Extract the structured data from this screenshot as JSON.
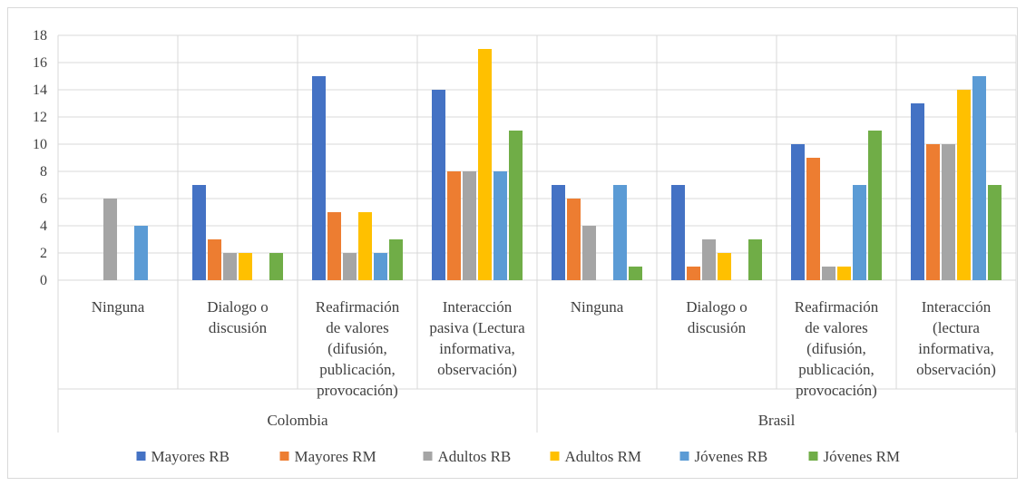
{
  "chart_data": {
    "type": "bar",
    "title": "",
    "xlabel": "",
    "ylabel": "",
    "ylim": [
      0,
      18
    ],
    "y_ticks": [
      0,
      2,
      4,
      6,
      8,
      10,
      12,
      14,
      16,
      18
    ],
    "grid": "horizontal major gridlines",
    "legend_position": "bottom",
    "groups": [
      {
        "name": "Colombia",
        "categories": [
          0,
          1,
          2,
          3
        ]
      },
      {
        "name": "Brasil",
        "categories": [
          4,
          5,
          6,
          7
        ]
      }
    ],
    "categories": [
      {
        "group": "Colombia",
        "lines": [
          "Ninguna"
        ]
      },
      {
        "group": "Colombia",
        "lines": [
          "Dialogo o",
          "discusión"
        ]
      },
      {
        "group": "Colombia",
        "lines": [
          "Reafirmación",
          "de valores",
          "(difusión,",
          "publicación,",
          "provocación)"
        ]
      },
      {
        "group": "Colombia",
        "lines": [
          "Interacción",
          "pasiva (Lectura",
          "informativa,",
          "observación)"
        ]
      },
      {
        "group": "Brasil",
        "lines": [
          "Ninguna"
        ]
      },
      {
        "group": "Brasil",
        "lines": [
          "Dialogo o",
          "discusión"
        ]
      },
      {
        "group": "Brasil",
        "lines": [
          "Reafirmación",
          "de valores",
          "(difusión,",
          "publicación,",
          "provocación)"
        ]
      },
      {
        "group": "Brasil",
        "lines": [
          "Interacción",
          "(lectura",
          "informativa,",
          "observación)"
        ]
      }
    ],
    "series": [
      {
        "name": "Mayores RB",
        "color": "#4472c4",
        "values": [
          0,
          7,
          15,
          14,
          7,
          7,
          10,
          13
        ]
      },
      {
        "name": "Mayores RM",
        "color": "#ed7d31",
        "values": [
          0,
          3,
          5,
          8,
          6,
          1,
          9,
          10
        ]
      },
      {
        "name": "Adultos RB",
        "color": "#a5a5a5",
        "values": [
          6,
          2,
          2,
          8,
          4,
          3,
          1,
          10
        ]
      },
      {
        "name": "Adultos RM",
        "color": "#ffc000",
        "values": [
          0,
          2,
          5,
          17,
          0,
          2,
          1,
          14
        ]
      },
      {
        "name": "Jóvenes RB",
        "color": "#5b9bd5",
        "values": [
          4,
          0,
          2,
          8,
          7,
          0,
          7,
          15
        ]
      },
      {
        "name": "Jóvenes RM",
        "color": "#70ad47",
        "values": [
          0,
          2,
          3,
          11,
          1,
          3,
          11,
          7
        ]
      }
    ]
  }
}
